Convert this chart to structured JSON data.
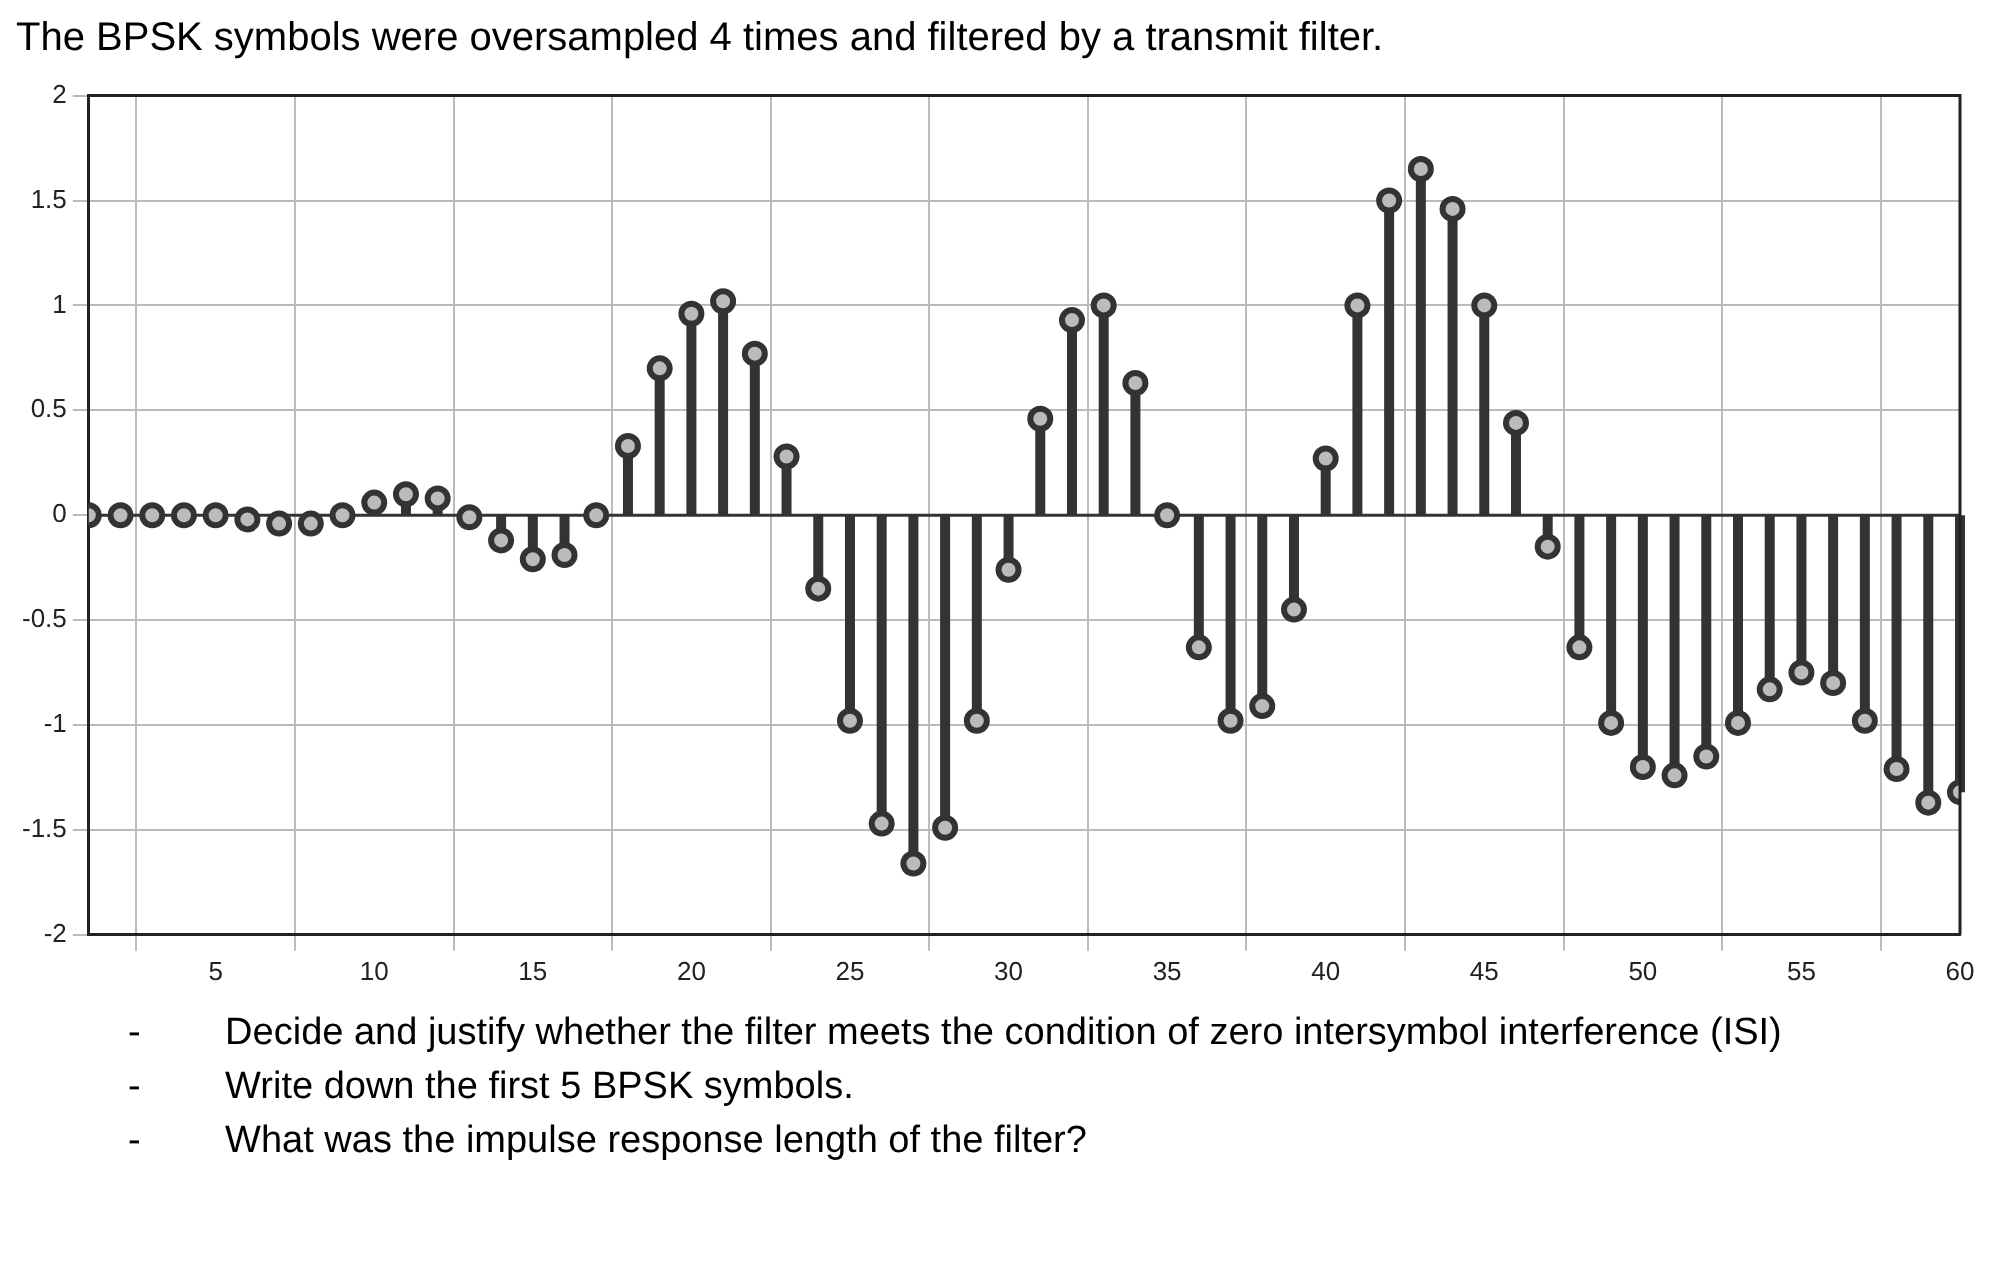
{
  "chart_data": {
    "type": "lollipop",
    "title": "The BPSK symbols were oversampled 4 times and filtered by a transmit filter.",
    "x": [
      1,
      2,
      3,
      4,
      5,
      6,
      7,
      8,
      9,
      10,
      11,
      12,
      13,
      14,
      15,
      16,
      17,
      18,
      19,
      20,
      21,
      22,
      23,
      24,
      25,
      26,
      27,
      28,
      29,
      30,
      31,
      32,
      33,
      34,
      35,
      36,
      37,
      38,
      39,
      40,
      41,
      42,
      43,
      44,
      45,
      46,
      47,
      48,
      49,
      50,
      51,
      52,
      53,
      54,
      55,
      56,
      57,
      58,
      59,
      60
    ],
    "values": [
      0,
      0,
      0,
      0,
      0,
      -0.02,
      -0.04,
      -0.04,
      0,
      0.06,
      0.1,
      0.08,
      -0.01,
      -0.12,
      -0.21,
      -0.19,
      0,
      0.33,
      0.7,
      0.96,
      1.02,
      0.77,
      0.28,
      -0.35,
      -0.98,
      -1.47,
      -1.66,
      -1.49,
      -0.98,
      -0.26,
      0.46,
      0.93,
      1.0,
      0.63,
      0,
      -0.63,
      -0.98,
      -0.91,
      -0.45,
      0.27,
      1.0,
      1.5,
      1.65,
      1.46,
      1.0,
      0.44,
      -0.15,
      -0.63,
      -0.99,
      -1.2,
      -1.24,
      -1.15,
      -0.99,
      -0.83,
      -0.75,
      -0.8,
      -0.98,
      -1.21,
      -1.37,
      -1.32
    ],
    "color": "#333333",
    "marker": "circle",
    "grid": true,
    "xlim": [
      1,
      60
    ],
    "xticks": [
      5,
      10,
      15,
      20,
      25,
      30,
      35,
      40,
      45,
      50,
      55,
      60
    ],
    "ylim": [
      -2,
      2
    ],
    "yticks": [
      -2,
      -1.5,
      -1,
      -0.5,
      0,
      0.5,
      1,
      1.5,
      2
    ],
    "annotations": [
      "-        Decide and justify whether the filter meets the condition of zero intersymbol interference (ISI)",
      "-        Write down the first 5 BPSK symbols.",
      "-        What was the impulse response length of the filter?"
    ]
  }
}
